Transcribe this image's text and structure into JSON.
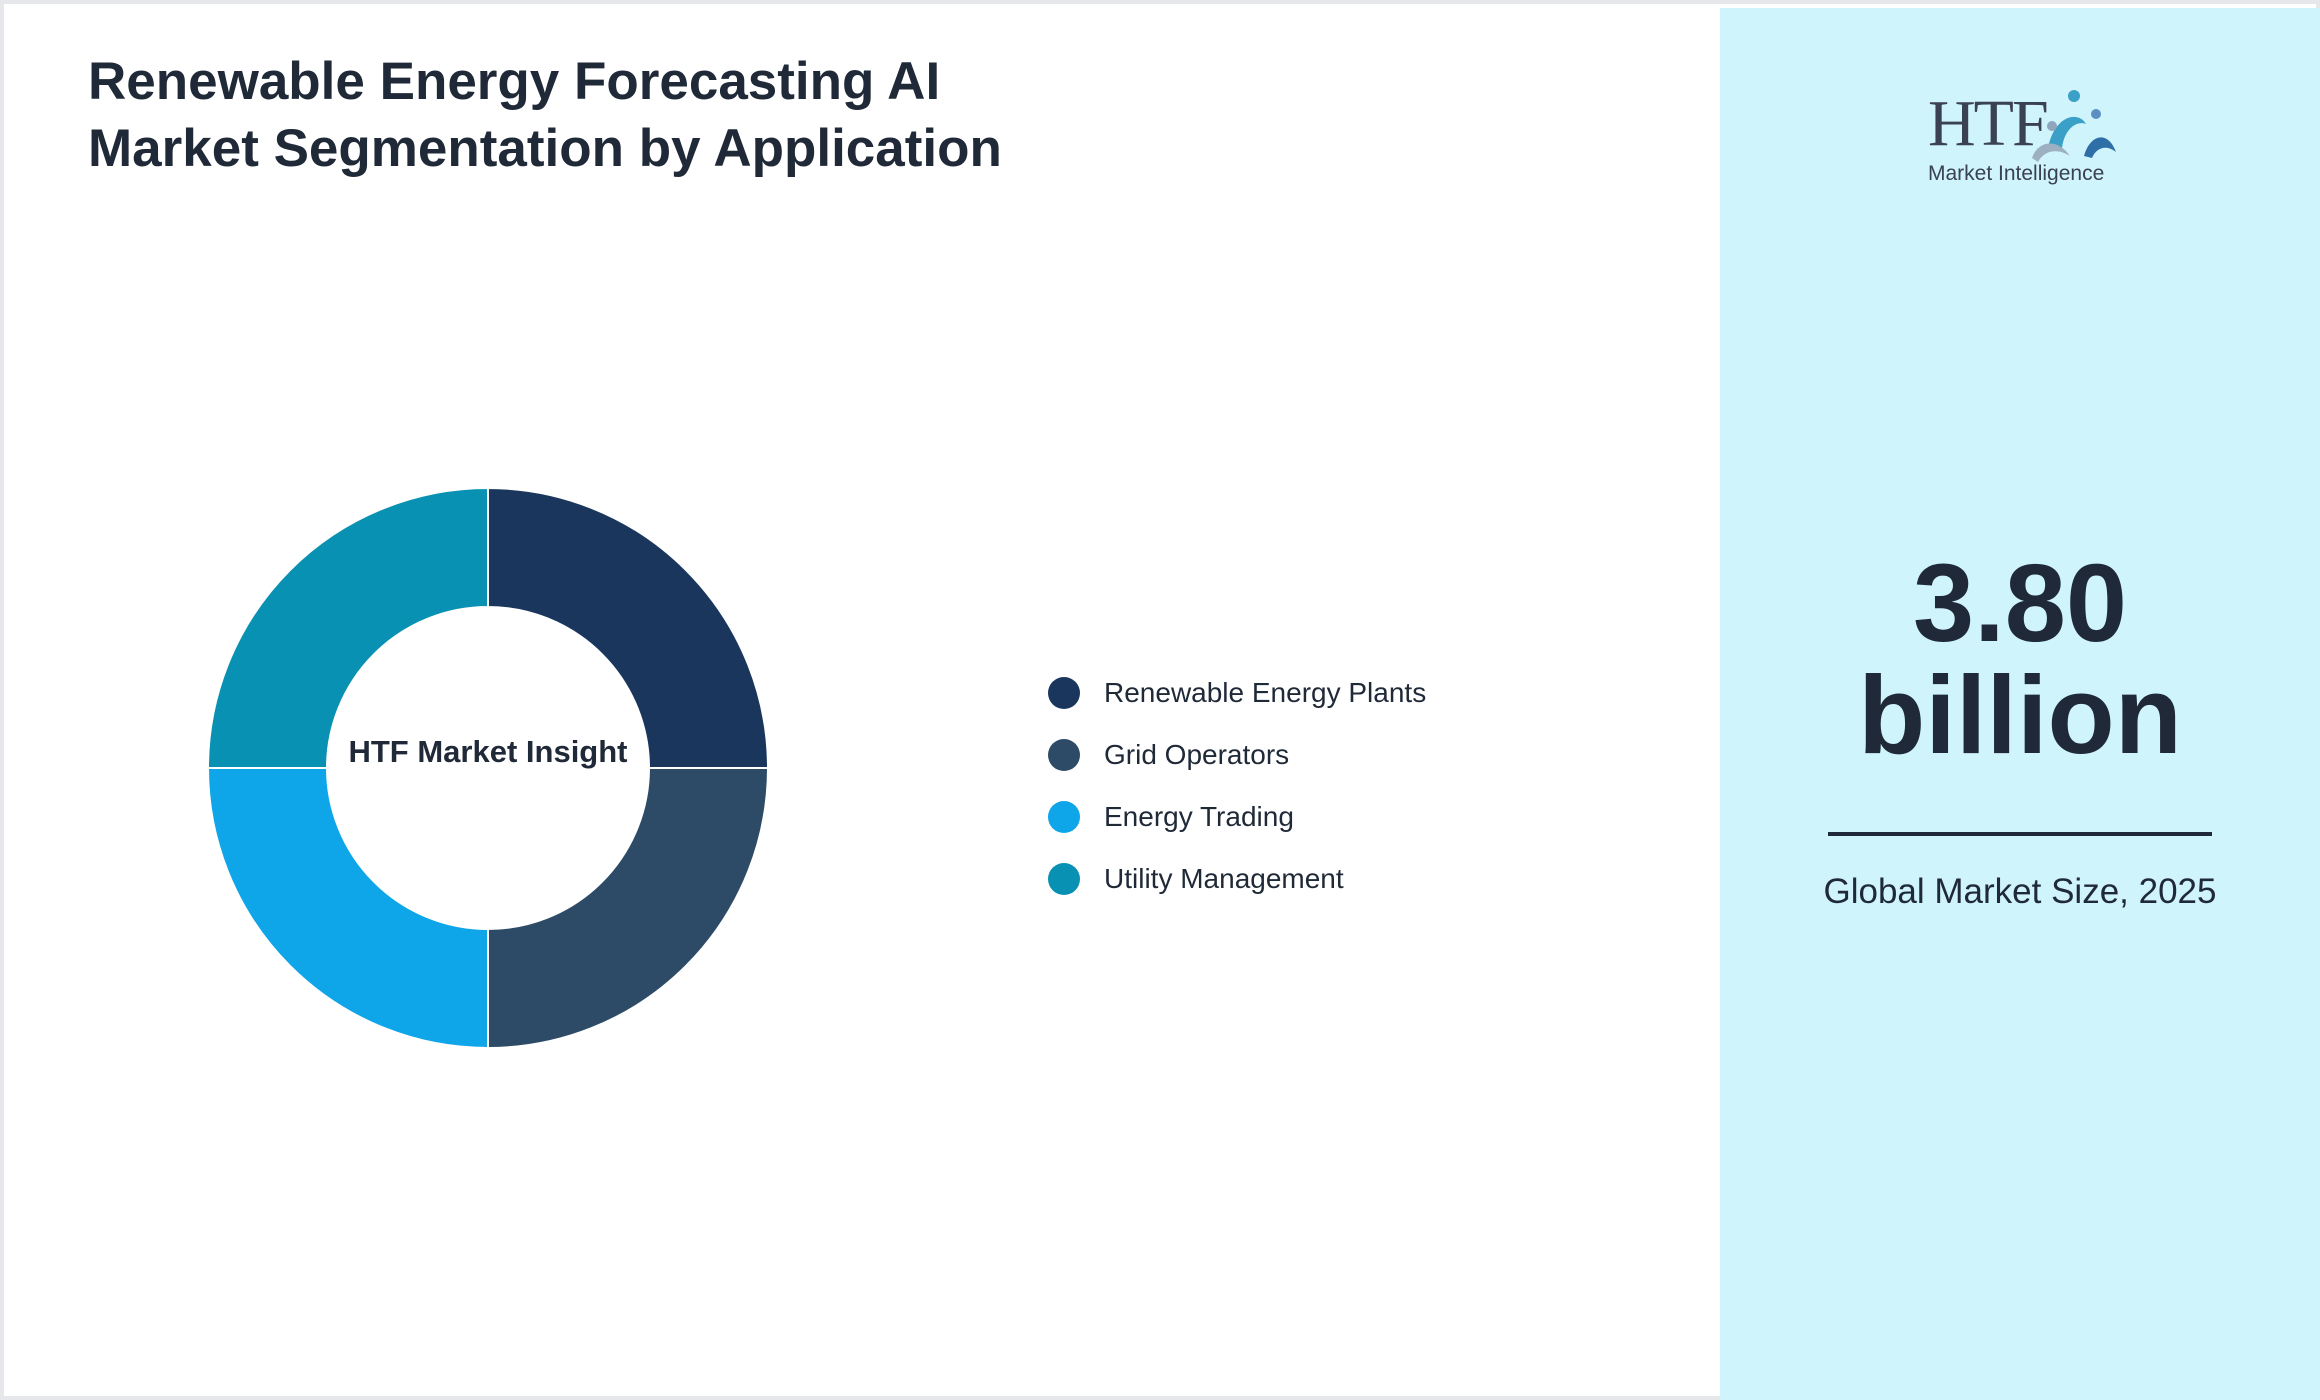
{
  "chart_data": {
    "type": "pie",
    "title": "Renewable Energy Forecasting AI Market Segmentation by Application",
    "center_label": "HTF Market Insight",
    "categories": [
      "Renewable Energy Plants",
      "Grid Operators",
      "Energy Trading",
      "Utility Management"
    ],
    "values": [
      25,
      25,
      25,
      25
    ],
    "colors": [
      "#1b365d",
      "#2d4a66",
      "#0ea5e9",
      "#0891b2"
    ],
    "legend_position": "right"
  },
  "brand": {
    "logo_text": "HTF",
    "logo_subtext": "Market Intelligence"
  },
  "kpi": {
    "value": "3.80",
    "unit": "billion",
    "caption": "Global Market Size, 2025"
  },
  "colors": {
    "panel_background": "#cff4fc",
    "text": "#1f2937"
  }
}
